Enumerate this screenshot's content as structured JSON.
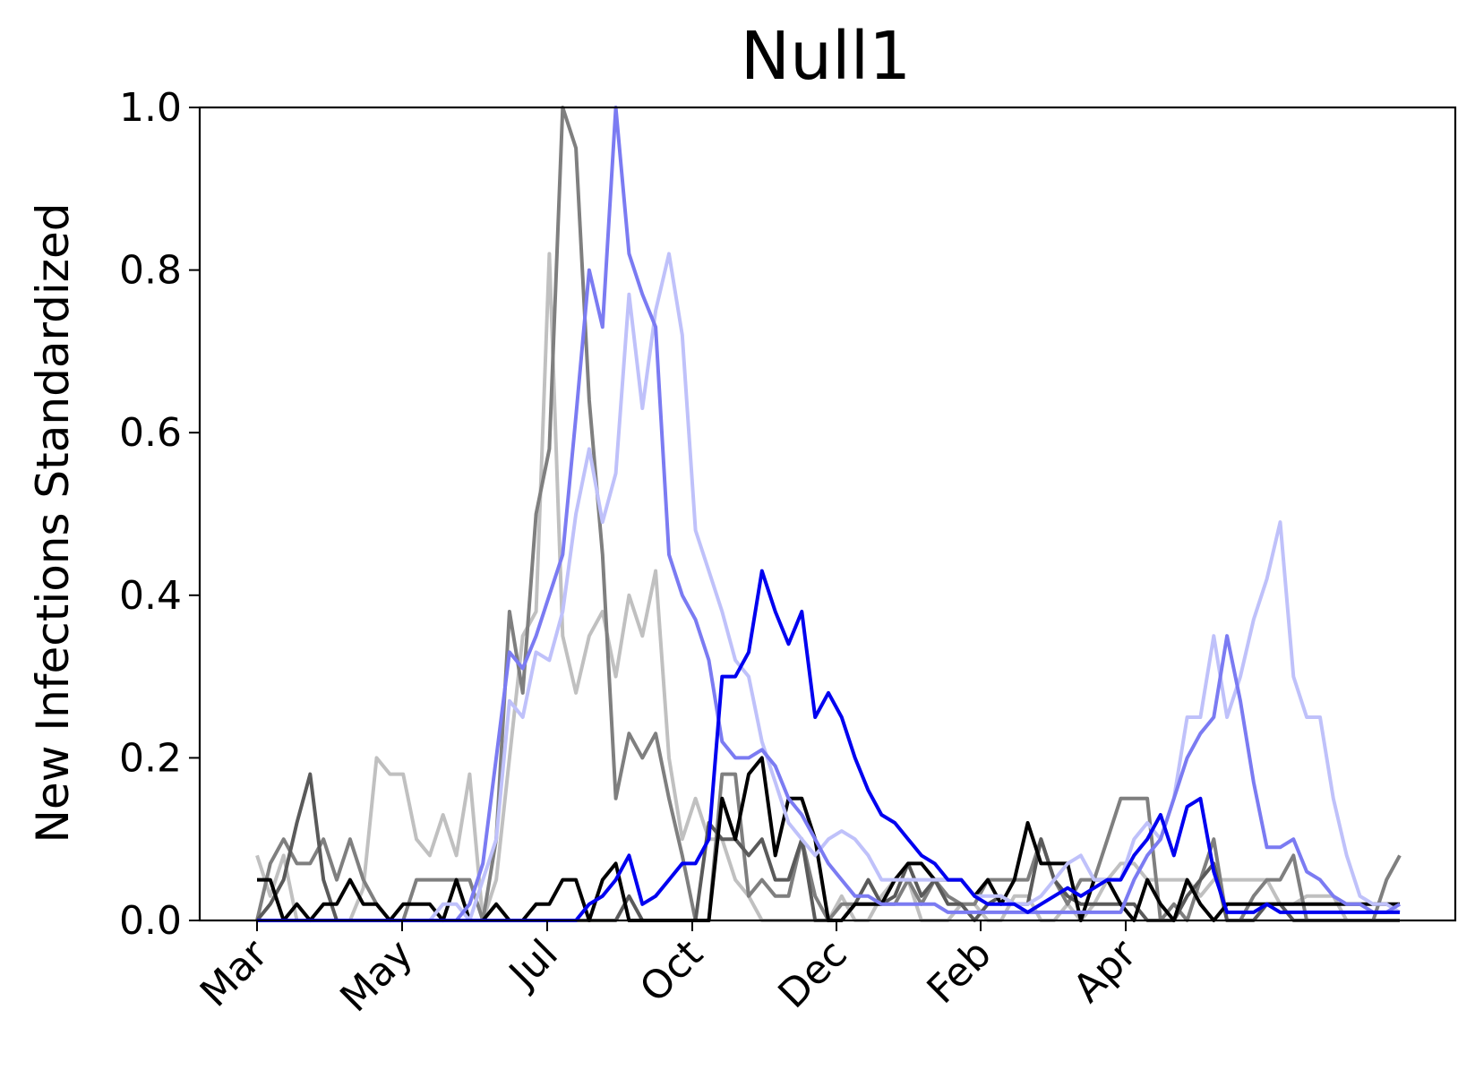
{
  "chart_data": {
    "type": "line",
    "title": "Null1",
    "xlabel": "",
    "ylabel": "New Infections Standardized",
    "ylim": [
      0,
      1
    ],
    "yticks": [
      "0.0",
      "0.2",
      "0.4",
      "0.6",
      "0.8",
      "1.0"
    ],
    "xticks": [
      "Mar",
      "May",
      "Jul",
      "Oct",
      "Dec",
      "Feb",
      "Apr"
    ],
    "grid": false,
    "legend": "none",
    "series": [
      {
        "color": "#c0c0c0",
        "values": [
          0.08,
          0.03,
          0.08,
          0,
          0,
          0,
          0,
          0,
          0.04,
          0.2,
          0.18,
          0.18,
          0.1,
          0.08,
          0.13,
          0.08,
          0.18,
          0,
          0.05,
          0.2,
          0.35,
          0.38,
          0.82,
          0.35,
          0.28,
          0.35,
          0.38,
          0.3,
          0.4,
          0.35,
          0.43,
          0.2,
          0.1,
          0.15,
          0.1,
          0.1,
          0.05,
          0.03,
          0,
          0,
          0,
          0,
          0,
          0,
          0.03,
          0,
          0,
          0.03,
          0.05,
          0.05,
          0,
          0,
          0,
          0.02,
          0.02,
          0,
          0,
          0.03,
          0.03,
          0,
          0,
          0.02,
          0,
          0.02,
          0.05,
          0.07,
          0.07,
          0.05,
          0.05,
          0.05,
          0.05,
          0.03,
          0.05,
          0.05,
          0.05,
          0.05,
          0.05,
          0.02,
          0.02,
          0.03,
          0.03,
          0.03,
          0,
          0,
          0,
          0,
          0
        ]
      },
      {
        "color": "#7f7f7f",
        "values": [
          0,
          0.07,
          0.1,
          0.07,
          0.07,
          0.1,
          0.05,
          0.1,
          0.05,
          0.02,
          0,
          0,
          0.05,
          0.05,
          0.05,
          0.05,
          0.05,
          0,
          0.1,
          0.38,
          0.28,
          0.5,
          0.58,
          1.0,
          0.95,
          0.64,
          0.45,
          0.15,
          0.23,
          0.2,
          0.23,
          0.15,
          0.08,
          0,
          0,
          0.18,
          0.18,
          0.03,
          0.05,
          0.03,
          0.03,
          0.1,
          0.03,
          0,
          0.02,
          0.02,
          0.02,
          0.02,
          0.02,
          0.05,
          0.02,
          0.05,
          0.03,
          0.02,
          0.02,
          0.05,
          0.05,
          0.05,
          0.05,
          0.1,
          0.05,
          0.02,
          0.05,
          0.05,
          0.1,
          0.15,
          0.15,
          0.15,
          0,
          0.02,
          0,
          0.05,
          0.1,
          0,
          0,
          0.03,
          0.05,
          0.05,
          0.08,
          0,
          0,
          0,
          0,
          0,
          0,
          0.05,
          0.08
        ]
      },
      {
        "color": "#5a5a5a",
        "values": [
          0,
          0.02,
          0.05,
          0.12,
          0.18,
          0.05,
          0,
          0,
          0,
          0,
          0,
          0,
          0,
          0,
          0,
          0,
          0,
          0,
          0,
          0,
          0,
          0,
          0,
          0,
          0,
          0,
          0,
          0,
          0.03,
          0,
          0,
          0,
          0,
          0,
          0.12,
          0.1,
          0.1,
          0.08,
          0.1,
          0.05,
          0.05,
          0.1,
          0,
          0,
          0,
          0.02,
          0.05,
          0.02,
          0.03,
          0.07,
          0.03,
          0.05,
          0.02,
          0.02,
          0,
          0.02,
          0.03,
          0.02,
          0.02,
          0.1,
          0.05,
          0.03,
          0.02,
          0.02,
          0.02,
          0.02,
          0.02,
          0,
          0,
          0,
          0.03,
          0.05,
          0.07,
          0,
          0,
          0,
          0.02,
          0.02,
          0,
          0,
          0,
          0,
          0,
          0,
          0,
          0,
          0
        ]
      },
      {
        "color": "#000000",
        "values": [
          0.05,
          0.05,
          0,
          0.02,
          0,
          0.02,
          0.02,
          0.05,
          0.02,
          0.02,
          0,
          0.02,
          0.02,
          0.02,
          0,
          0.05,
          0,
          0,
          0.02,
          0,
          0,
          0.02,
          0.02,
          0.05,
          0.05,
          0,
          0.05,
          0.07,
          0,
          0,
          0,
          0,
          0,
          0,
          0,
          0.15,
          0.1,
          0.18,
          0.2,
          0.08,
          0.15,
          0.15,
          0.1,
          0,
          0,
          0.02,
          0.02,
          0.02,
          0.05,
          0.07,
          0.07,
          0.05,
          0.05,
          0.05,
          0.03,
          0.05,
          0.02,
          0.05,
          0.12,
          0.07,
          0.07,
          0.07,
          0,
          0.05,
          0.05,
          0.02,
          0,
          0.05,
          0.02,
          0,
          0.05,
          0.02,
          0,
          0.02,
          0.02,
          0.02,
          0.02,
          0.02,
          0.02,
          0.02,
          0.02,
          0.02,
          0.02,
          0.02,
          0.02,
          0.02,
          0.02
        ]
      },
      {
        "color": "#bfc1fa",
        "values": [
          0,
          0,
          0,
          0,
          0,
          0,
          0,
          0,
          0,
          0,
          0,
          0,
          0,
          0,
          0.02,
          0.02,
          0,
          0.05,
          0.1,
          0.27,
          0.25,
          0.33,
          0.32,
          0.38,
          0.5,
          0.58,
          0.49,
          0.55,
          0.77,
          0.63,
          0.75,
          0.82,
          0.72,
          0.48,
          0.43,
          0.38,
          0.32,
          0.3,
          0.22,
          0.17,
          0.12,
          0.1,
          0.08,
          0.1,
          0.11,
          0.1,
          0.08,
          0.05,
          0.05,
          0.05,
          0.05,
          0.05,
          0.05,
          0.05,
          0.03,
          0.03,
          0.03,
          0.02,
          0.02,
          0.03,
          0.05,
          0.07,
          0.08,
          0.05,
          0.05,
          0.05,
          0.1,
          0.12,
          0.1,
          0.15,
          0.25,
          0.25,
          0.35,
          0.25,
          0.3,
          0.37,
          0.42,
          0.49,
          0.3,
          0.25,
          0.25,
          0.15,
          0.08,
          0.03,
          0.02,
          0.02,
          0.01
        ]
      },
      {
        "color": "#7b7bf2",
        "values": [
          0,
          0,
          0,
          0,
          0,
          0,
          0,
          0,
          0,
          0,
          0,
          0,
          0,
          0,
          0,
          0,
          0.02,
          0.07,
          0.2,
          0.33,
          0.31,
          0.35,
          0.4,
          0.45,
          0.62,
          0.8,
          0.73,
          1.0,
          0.82,
          0.77,
          0.73,
          0.45,
          0.4,
          0.37,
          0.32,
          0.22,
          0.2,
          0.2,
          0.21,
          0.19,
          0.15,
          0.13,
          0.1,
          0.07,
          0.05,
          0.03,
          0.03,
          0.02,
          0.02,
          0.02,
          0.02,
          0.02,
          0.01,
          0.01,
          0.01,
          0.01,
          0.01,
          0.01,
          0.01,
          0.01,
          0.01,
          0.01,
          0.01,
          0.01,
          0.01,
          0.01,
          0.05,
          0.08,
          0.1,
          0.15,
          0.2,
          0.23,
          0.25,
          0.35,
          0.27,
          0.17,
          0.09,
          0.09,
          0.1,
          0.06,
          0.05,
          0.03,
          0.02,
          0.02,
          0.01,
          0.01,
          0.02
        ]
      },
      {
        "color": "#0000f0",
        "values": [
          0,
          0,
          0,
          0,
          0,
          0,
          0,
          0,
          0,
          0,
          0,
          0,
          0,
          0,
          0,
          0,
          0,
          0,
          0,
          0,
          0,
          0,
          0,
          0,
          0,
          0.02,
          0.03,
          0.05,
          0.08,
          0.02,
          0.03,
          0.05,
          0.07,
          0.07,
          0.1,
          0.3,
          0.3,
          0.33,
          0.43,
          0.38,
          0.34,
          0.38,
          0.25,
          0.28,
          0.25,
          0.2,
          0.16,
          0.13,
          0.12,
          0.1,
          0.08,
          0.07,
          0.05,
          0.05,
          0.03,
          0.02,
          0.02,
          0.02,
          0.01,
          0.02,
          0.03,
          0.04,
          0.03,
          0.04,
          0.05,
          0.05,
          0.08,
          0.1,
          0.13,
          0.08,
          0.14,
          0.15,
          0.06,
          0.01,
          0.01,
          0.01,
          0.02,
          0.01,
          0.01,
          0.01,
          0.01,
          0.01,
          0.01,
          0.01,
          0.01,
          0.01,
          0.01
        ]
      }
    ]
  }
}
